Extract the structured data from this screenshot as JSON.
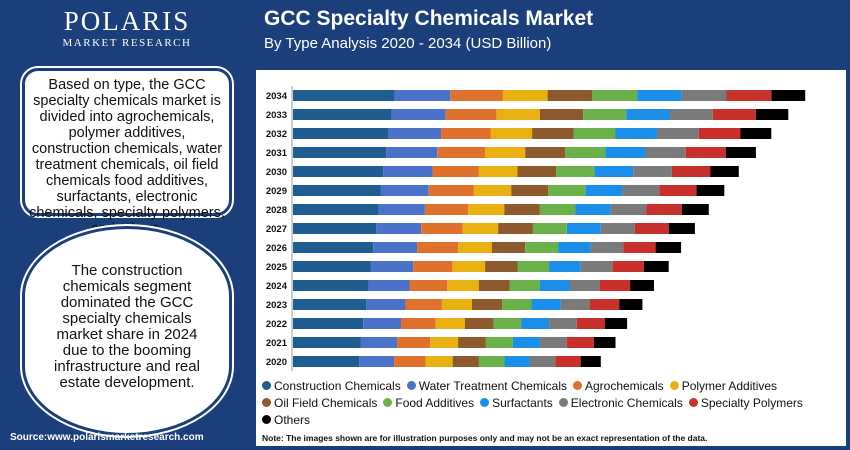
{
  "brand": {
    "name": "POLARIS",
    "tagline": "MARKET RESEARCH"
  },
  "header": {
    "title": "GCC Specialty Chemicals Market",
    "subtitle": "By Type Analysis 2020 - 2034 (USD Billion)"
  },
  "side": {
    "box1": "Based on type, the GCC specialty chemicals market is divided into agrochemicals, polymer additives, construction chemicals, water treatment chemicals, oil field chemicals food additives, surfactants, electronic chemicals, specialty polymers, and others.",
    "box2": "The construction chemicals segment dominated the GCC specialty chemicals market share in 2024 due to the booming infrastructure and real estate development."
  },
  "source": "Source:www.polarismarketresearch.com",
  "note": "Note: The images shown are for illustration purposes only and may not be an exact representation of the data.",
  "colors": {
    "background": "#1a3f7a",
    "series": [
      "#1f5c8f",
      "#4a72c8",
      "#e0712c",
      "#e8b010",
      "#8c5a2c",
      "#6ab14a",
      "#1a8ee8",
      "#7a7a7a",
      "#c8302c",
      "#000000"
    ]
  },
  "chart_data": {
    "type": "bar",
    "orientation": "horizontal",
    "stacked": true,
    "categories": [
      "2034",
      "2033",
      "2032",
      "2031",
      "2030",
      "2029",
      "2028",
      "2027",
      "2026",
      "2025",
      "2024",
      "2023",
      "2022",
      "2021",
      "2020"
    ],
    "series": [
      {
        "name": "Construction Chemicals",
        "values": [
          6.6,
          6.4,
          6.2,
          6.05,
          5.85,
          5.7,
          5.55,
          5.4,
          5.2,
          5.05,
          4.9,
          4.75,
          4.55,
          4.4,
          4.3
        ]
      },
      {
        "name": "Water Treatment Chemicals",
        "values": [
          3.6,
          3.5,
          3.4,
          3.3,
          3.2,
          3.1,
          3.0,
          2.9,
          2.85,
          2.75,
          2.65,
          2.55,
          2.45,
          2.35,
          2.25
        ]
      },
      {
        "name": "Agrochemicals",
        "values": [
          3.4,
          3.3,
          3.2,
          3.1,
          3.0,
          2.9,
          2.8,
          2.7,
          2.65,
          2.55,
          2.45,
          2.35,
          2.25,
          2.15,
          2.05
        ]
      },
      {
        "name": "Polymer Additives",
        "values": [
          2.9,
          2.8,
          2.7,
          2.6,
          2.5,
          2.45,
          2.35,
          2.3,
          2.2,
          2.1,
          2.05,
          1.95,
          1.9,
          1.8,
          1.75
        ]
      },
      {
        "name": "Oil Field Chemicals",
        "values": [
          2.9,
          2.8,
          2.7,
          2.6,
          2.5,
          2.4,
          2.3,
          2.25,
          2.15,
          2.1,
          2.0,
          1.95,
          1.85,
          1.8,
          1.7
        ]
      },
      {
        "name": "Food Additives",
        "values": [
          2.9,
          2.8,
          2.7,
          2.6,
          2.5,
          2.4,
          2.3,
          2.2,
          2.15,
          2.05,
          1.95,
          1.9,
          1.8,
          1.75,
          1.65
        ]
      },
      {
        "name": "Surfactants",
        "values": [
          2.9,
          2.8,
          2.7,
          2.6,
          2.5,
          2.4,
          2.3,
          2.2,
          2.1,
          2.05,
          1.95,
          1.9,
          1.8,
          1.75,
          1.65
        ]
      },
      {
        "name": "Electronic Chemicals",
        "values": [
          2.9,
          2.8,
          2.7,
          2.6,
          2.5,
          2.4,
          2.3,
          2.2,
          2.1,
          2.05,
          1.95,
          1.9,
          1.8,
          1.75,
          1.65
        ]
      },
      {
        "name": "Specialty Polymers",
        "values": [
          2.9,
          2.8,
          2.7,
          2.6,
          2.5,
          2.4,
          2.3,
          2.2,
          2.1,
          2.05,
          1.95,
          1.9,
          1.8,
          1.75,
          1.65
        ]
      },
      {
        "name": "Others",
        "values": [
          2.2,
          2.1,
          2.0,
          1.95,
          1.85,
          1.8,
          1.75,
          1.7,
          1.65,
          1.6,
          1.55,
          1.5,
          1.45,
          1.4,
          1.3
        ]
      }
    ],
    "title": "GCC Specialty Chemicals Market",
    "subtitle": "By Type Analysis 2020 - 2034 (USD Billion)",
    "xlabel": "",
    "ylabel": "",
    "xlim": [
      0,
      35
    ],
    "grid": false,
    "legend_position": "bottom"
  }
}
